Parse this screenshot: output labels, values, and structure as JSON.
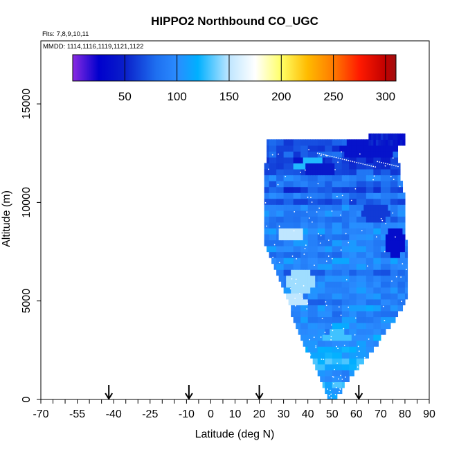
{
  "chart_data": {
    "type": "heatmap",
    "title": "HIPPO2 Northbound CO_UGC",
    "subtitle_flights": "Flts: 7,8,9,10,11",
    "subtitle_dates": "MMDD: 1114,1116,1119,1121,1122",
    "xlabel": "Latitude (deg N)",
    "ylabel": "Altitude (m)",
    "xlim": [
      -70,
      90
    ],
    "ylim": [
      0,
      18200
    ],
    "x_tick_labels": [
      -70,
      -55,
      -40,
      -25,
      -10,
      0,
      10,
      20,
      30,
      40,
      50,
      60,
      70,
      80,
      90
    ],
    "x_minor_step": 5,
    "y_tick_labels": [
      0,
      5000,
      10000,
      15000
    ],
    "colorbar": {
      "range": [
        0,
        310
      ],
      "tick_labels": [
        50,
        100,
        150,
        200,
        250,
        300
      ],
      "stops": [
        {
          "v": 0,
          "color": "#8a2be2"
        },
        {
          "v": 25,
          "color": "#0000cd"
        },
        {
          "v": 50,
          "color": "#0a1fc9"
        },
        {
          "v": 80,
          "color": "#1e6ff0"
        },
        {
          "v": 100,
          "color": "#2a8cff"
        },
        {
          "v": 120,
          "color": "#00b0ff"
        },
        {
          "v": 150,
          "color": "#bfe6ff"
        },
        {
          "v": 175,
          "color": "#ffffff"
        },
        {
          "v": 200,
          "color": "#ffff66"
        },
        {
          "v": 225,
          "color": "#ffbb00"
        },
        {
          "v": 250,
          "color": "#ff7a00"
        },
        {
          "v": 275,
          "color": "#ff1a00"
        },
        {
          "v": 300,
          "color": "#c00000"
        },
        {
          "v": 310,
          "color": "#a01010"
        }
      ]
    },
    "profile_arrow_latitudes": [
      -42,
      -9,
      20,
      61
    ],
    "curtain": {
      "lat_step": 1,
      "alt_step": 300,
      "top_altitude": 13000,
      "cap": {
        "alt_min": 12900,
        "alt_max": 13500,
        "lat_min": 65,
        "lat_max": 80
      },
      "envelope": [
        {
          "alt": 0,
          "lat_min": 49,
          "lat_max": 51
        },
        {
          "alt": 600,
          "lat_min": 47,
          "lat_max": 54
        },
        {
          "alt": 1200,
          "lat_min": 45,
          "lat_max": 58
        },
        {
          "alt": 2000,
          "lat_min": 42,
          "lat_max": 63
        },
        {
          "alt": 3000,
          "lat_min": 38,
          "lat_max": 69
        },
        {
          "alt": 4000,
          "lat_min": 35,
          "lat_max": 75
        },
        {
          "alt": 5000,
          "lat_min": 32,
          "lat_max": 80
        },
        {
          "alt": 6000,
          "lat_min": 29,
          "lat_max": 81
        },
        {
          "alt": 7000,
          "lat_min": 26,
          "lat_max": 81
        },
        {
          "alt": 8000,
          "lat_min": 22,
          "lat_max": 80
        },
        {
          "alt": 9000,
          "lat_min": 22,
          "lat_max": 80
        },
        {
          "alt": 10000,
          "lat_min": 22,
          "lat_max": 80
        },
        {
          "alt": 11000,
          "lat_min": 22,
          "lat_max": 78
        },
        {
          "alt": 12000,
          "lat_min": 23,
          "lat_max": 77
        },
        {
          "alt": 13000,
          "lat_min": 23,
          "lat_max": 77
        }
      ],
      "base_value_by_altitude": [
        {
          "alt": 0,
          "v": 110
        },
        {
          "alt": 2000,
          "v": 108
        },
        {
          "alt": 4000,
          "v": 100
        },
        {
          "alt": 6000,
          "v": 95
        },
        {
          "alt": 8000,
          "v": 90
        },
        {
          "alt": 10000,
          "v": 82
        },
        {
          "alt": 12000,
          "v": 70
        },
        {
          "alt": 13500,
          "v": 55
        }
      ],
      "highlights": [
        {
          "lat": 33,
          "alt": 8400,
          "rx": 5,
          "ry": 350,
          "v": 150
        },
        {
          "lat": 37,
          "alt": 6000,
          "rx": 6,
          "ry": 600,
          "v": 145
        },
        {
          "lat": 33,
          "alt": 5000,
          "rx": 7,
          "ry": 350,
          "v": 150
        },
        {
          "lat": 52,
          "alt": 3200,
          "rx": 6,
          "ry": 300,
          "v": 130
        },
        {
          "lat": 42,
          "alt": 11900,
          "rx": 8,
          "ry": 300,
          "v": 125
        }
      ],
      "lowlights": [
        {
          "lat": 45,
          "alt": 11700,
          "rx": 6,
          "ry": 400,
          "v": 45
        },
        {
          "lat": 76,
          "alt": 8000,
          "rx": 4,
          "ry": 800,
          "v": 35
        },
        {
          "lat": 68,
          "alt": 9500,
          "rx": 6,
          "ry": 500,
          "v": 60
        },
        {
          "lat": 65,
          "alt": 12700,
          "rx": 12,
          "ry": 500,
          "v": 40
        }
      ]
    }
  }
}
